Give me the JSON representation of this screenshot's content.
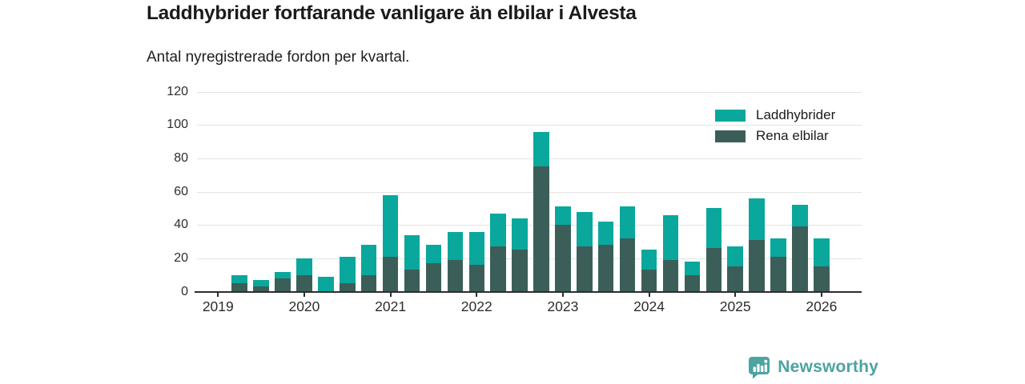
{
  "chart_data": {
    "type": "bar",
    "stacked": true,
    "title": "Laddhybrider fortfarande vanligare än elbilar i Alvesta",
    "subtitle": "Antal nyregistrerade fordon per kvartal.",
    "categories": [
      "2019 Q2",
      "2019 Q3",
      "2019 Q4",
      "2020 Q1",
      "2020 Q2",
      "2020 Q3",
      "2020 Q4",
      "2021 Q1",
      "2021 Q2",
      "2021 Q3",
      "2021 Q4",
      "2022 Q1",
      "2022 Q2",
      "2022 Q3",
      "2022 Q4",
      "2023 Q1",
      "2023 Q2",
      "2023 Q3",
      "2023 Q4",
      "2024 Q1",
      "2024 Q2",
      "2024 Q3",
      "2024 Q4",
      "2025 Q1",
      "2025 Q2",
      "2025 Q3",
      "2025 Q4",
      "2026 Q1"
    ],
    "series": [
      {
        "name": "Laddhybrider",
        "color": "#0aa79d",
        "stack_position": "top",
        "values": [
          5,
          4,
          4,
          10,
          9,
          16,
          18,
          37,
          21,
          11,
          17,
          20,
          20,
          19,
          21,
          11,
          21,
          14,
          19,
          12,
          27,
          8,
          24,
          12,
          25,
          11,
          13,
          17
        ]
      },
      {
        "name": "Rena elbilar",
        "color": "#3b5f58",
        "stack_position": "bottom",
        "values": [
          5,
          3,
          8,
          10,
          0,
          5,
          10,
          21,
          13,
          17,
          19,
          16,
          27,
          25,
          75,
          40,
          27,
          28,
          32,
          13,
          19,
          10,
          26,
          15,
          31,
          21,
          39,
          15
        ]
      }
    ],
    "stack_totals": [
      10,
      7,
      12,
      20,
      9,
      21,
      28,
      58,
      34,
      28,
      36,
      36,
      47,
      44,
      96,
      51,
      48,
      42,
      51,
      25,
      46,
      18,
      50,
      27,
      56,
      32,
      52,
      32
    ],
    "ylim": [
      0,
      120
    ],
    "yticks": [
      0,
      20,
      40,
      60,
      80,
      100,
      120
    ],
    "xticks": [
      "2019",
      "2020",
      "2021",
      "2022",
      "2023",
      "2024",
      "2025",
      "2026"
    ],
    "grid": true,
    "legend_position": "top-right"
  },
  "branding": {
    "name": "Newsworthy",
    "color": "#4ba4a1"
  }
}
